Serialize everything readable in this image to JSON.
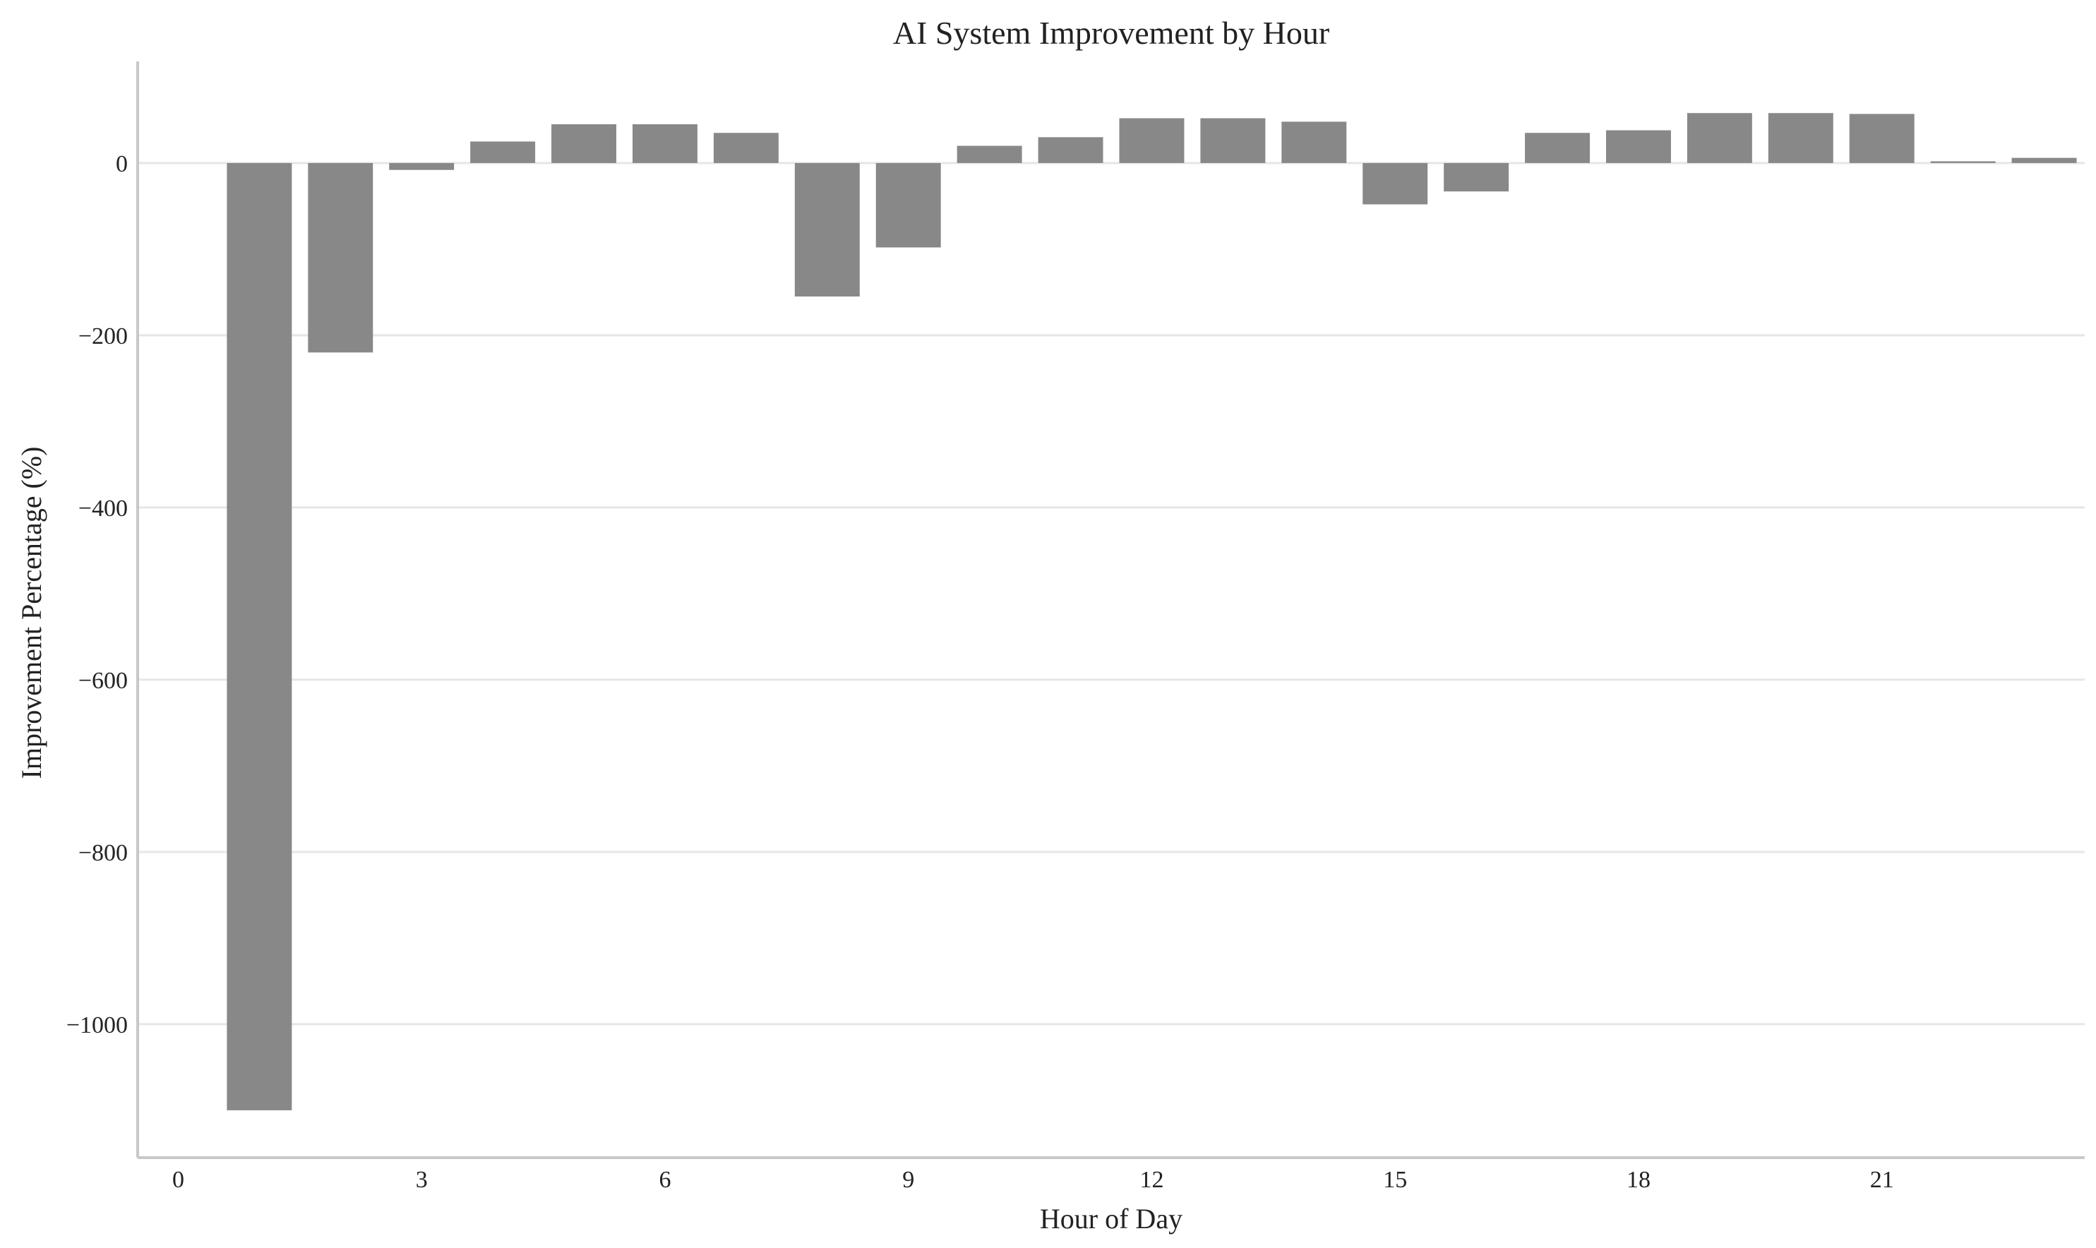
{
  "chart_data": {
    "type": "bar",
    "title": "AI System Improvement by Hour",
    "xlabel": "Hour of Day",
    "ylabel": "Improvement Percentage (%)",
    "categories": [
      1,
      2,
      3,
      4,
      5,
      6,
      7,
      8,
      9,
      10,
      11,
      12,
      13,
      14,
      15,
      16,
      17,
      18,
      19,
      20,
      21,
      22,
      23
    ],
    "values": [
      -1100,
      -220,
      -8,
      25,
      45,
      45,
      35,
      -155,
      -98,
      20,
      30,
      52,
      52,
      48,
      -48,
      -33,
      35,
      38,
      58,
      58,
      57,
      2,
      6
    ],
    "xlim": [
      -0.5,
      23.5
    ],
    "ylim": [
      -1155,
      118
    ],
    "xticks": [
      0,
      3,
      6,
      9,
      12,
      15,
      18,
      21
    ],
    "xtick_labels": [
      "0",
      "3",
      "6",
      "9",
      "12",
      "15",
      "18",
      "21"
    ],
    "yticks": [
      0,
      -200,
      -400,
      -600,
      -800,
      -1000
    ],
    "ytick_labels": [
      "0",
      "−200",
      "−400",
      "−600",
      "−800",
      "−1000"
    ],
    "grid": "horizontal",
    "legend": "none",
    "colors": {
      "bar": "#888888",
      "grid": "#e6e6e6",
      "spine": "#c8c8c8",
      "text": "#222222"
    }
  }
}
